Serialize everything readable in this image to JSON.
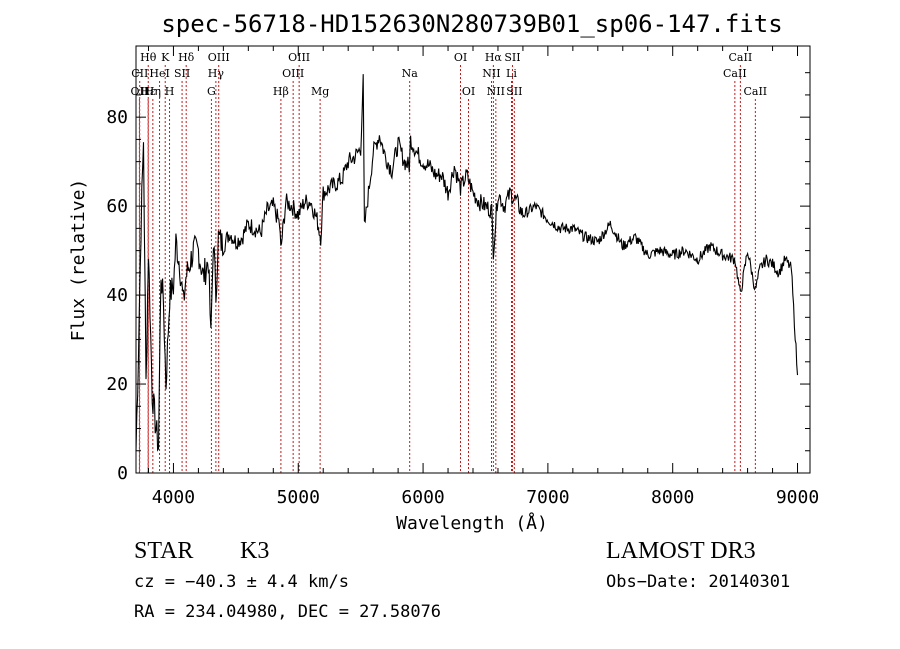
{
  "chart_data": {
    "type": "line",
    "title": "spec-56718-HD152630N280739B01_sp06-147.fits",
    "xlabel": "Wavelength (Å)",
    "ylabel": "Flux (relative)",
    "xlim": [
      3700,
      9100
    ],
    "ylim": [
      0,
      96
    ],
    "xticks": [
      4000,
      5000,
      6000,
      7000,
      8000,
      9000
    ],
    "yticks": [
      0,
      20,
      40,
      60,
      80
    ],
    "grid": false,
    "series": [
      {
        "color": "#000000",
        "x": [
          3700,
          3720,
          3740,
          3760,
          3780,
          3800,
          3830,
          3860,
          3880,
          3900,
          3920,
          3940,
          3970,
          4000,
          4020,
          4050,
          4080,
          4100,
          4130,
          4160,
          4200,
          4240,
          4280,
          4300,
          4320,
          4340,
          4360,
          4400,
          4450,
          4500,
          4550,
          4600,
          4650,
          4700,
          4750,
          4800,
          4850,
          4860,
          4900,
          4950,
          5000,
          5050,
          5100,
          5150,
          5180,
          5200,
          5250,
          5300,
          5350,
          5400,
          5450,
          5500,
          5520,
          5530,
          5550,
          5600,
          5650,
          5700,
          5750,
          5800,
          5850,
          5890,
          5900,
          5950,
          6000,
          6050,
          6100,
          6150,
          6200,
          6250,
          6300,
          6350,
          6400,
          6450,
          6500,
          6550,
          6563,
          6600,
          6650,
          6700,
          6750,
          6800,
          6900,
          7000,
          7100,
          7200,
          7300,
          7400,
          7500,
          7600,
          7700,
          7800,
          7900,
          8000,
          8100,
          8200,
          8300,
          8400,
          8500,
          8542,
          8600,
          8662,
          8700,
          8750,
          8800,
          8850,
          8900,
          8950,
          9000
        ],
        "y": [
          5,
          28,
          55,
          75,
          20,
          50,
          18,
          10,
          6,
          45,
          38,
          20,
          40,
          42,
          52,
          47,
          38,
          44,
          47,
          50,
          50,
          44,
          48,
          30,
          53,
          40,
          53,
          51,
          54,
          52,
          53,
          56,
          55,
          54,
          59,
          60,
          56,
          50,
          61,
          60,
          58,
          61,
          61,
          57,
          53,
          63,
          64,
          65,
          66,
          70,
          71,
          73,
          88,
          55,
          60,
          72,
          76,
          71,
          68,
          74,
          70,
          69,
          75,
          72,
          70,
          69,
          67,
          67,
          63,
          69,
          64,
          67,
          63,
          61,
          60,
          59,
          50,
          63,
          60,
          63,
          61,
          58,
          60,
          57,
          55,
          55,
          53,
          52,
          56,
          51,
          53,
          49,
          50,
          49,
          50,
          48,
          51,
          49,
          48,
          40,
          50,
          41,
          46,
          48,
          47,
          45,
          48,
          46,
          22
        ]
      }
    ],
    "line_markers": [
      {
        "label": "Hθ",
        "x": 3798,
        "row": 1
      },
      {
        "label": "CII",
        "x": 3730,
        "row": 2
      },
      {
        "label": "OII",
        "x": 3727,
        "row": 3
      },
      {
        "label": "Hε",
        "x": 3797,
        "row": 3
      },
      {
        "label": "K",
        "x": 3934,
        "row": 1
      },
      {
        "label": "HeI",
        "x": 3889,
        "row": 2
      },
      {
        "label": "Hη",
        "x": 3835,
        "row": 3
      },
      {
        "label": "SII",
        "x": 4069,
        "row": 2
      },
      {
        "label": "H",
        "x": 3969,
        "row": 3
      },
      {
        "label": "Hδ",
        "x": 4102,
        "row": 1
      },
      {
        "label": "OIII",
        "x": 4363,
        "row": 1
      },
      {
        "label": "Hγ",
        "x": 4340,
        "row": 2
      },
      {
        "label": "G",
        "x": 4304,
        "row": 3
      },
      {
        "label": "Hβ",
        "x": 4861,
        "row": 3
      },
      {
        "label": "OIII",
        "x": 5007,
        "row": 1
      },
      {
        "label": "OIII",
        "x": 4959,
        "row": 2
      },
      {
        "label": "Mg",
        "x": 5175,
        "row": 3
      },
      {
        "label": "Na",
        "x": 5893,
        "row": 2
      },
      {
        "label": "OI",
        "x": 6300,
        "row": 1
      },
      {
        "label": "OI",
        "x": 6364,
        "row": 3
      },
      {
        "label": "Hα",
        "x": 6563,
        "row": 1
      },
      {
        "label": "NII",
        "x": 6548,
        "row": 2
      },
      {
        "label": "NII",
        "x": 6583,
        "row": 3
      },
      {
        "label": "SII",
        "x": 6716,
        "row": 1
      },
      {
        "label": "Li",
        "x": 6708,
        "row": 2
      },
      {
        "label": "SII",
        "x": 6731,
        "row": 3
      },
      {
        "label": "CaII",
        "x": 8542,
        "row": 1
      },
      {
        "label": "CaII",
        "x": 8498,
        "row": 2
      },
      {
        "label": "CaII",
        "x": 8662,
        "row": 3
      }
    ]
  },
  "info": {
    "object_class": "STAR",
    "subclass": "K3",
    "survey": "LAMOST DR3",
    "cz": "cz = −40.3 ± 4.4 km/s",
    "obs_date": "Obs−Date: 20140301",
    "radec": "RA = 234.04980, DEC =  27.58076"
  },
  "colors": {
    "marker_line": "#c00000",
    "spectrum": "#000000",
    "axes": "#000000"
  }
}
